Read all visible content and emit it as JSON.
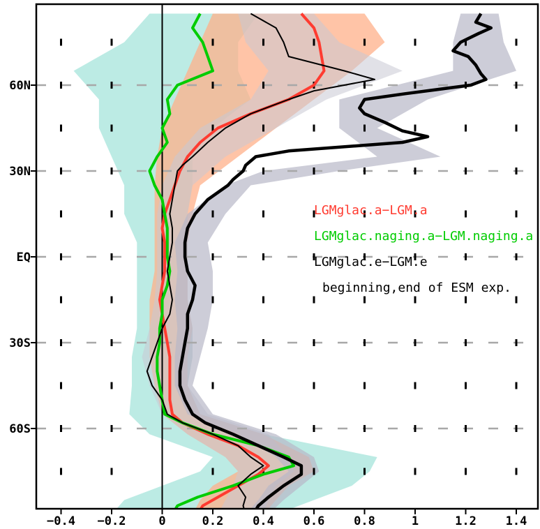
{
  "chart_data": {
    "type": "line",
    "orientation": "vertical-profile",
    "xlim": [
      -0.5,
      1.5
    ],
    "ylim": [
      -90,
      85
    ],
    "x_ticks": [
      {
        "value": -0.4,
        "label": "−0.4"
      },
      {
        "value": -0.2,
        "label": "−0.2"
      },
      {
        "value": 0,
        "label": "0"
      },
      {
        "value": 0.2,
        "label": "0.2"
      },
      {
        "value": 0.4,
        "label": "0.4"
      },
      {
        "value": 0.6,
        "label": "0.6"
      },
      {
        "value": 0.8,
        "label": "0.8"
      },
      {
        "value": 1,
        "label": "1"
      },
      {
        "value": 1.2,
        "label": "1.2"
      },
      {
        "value": 1.4,
        "label": "1.4"
      }
    ],
    "y_ticks": [
      {
        "value": 60,
        "label": "60N"
      },
      {
        "value": 30,
        "label": "30N"
      },
      {
        "value": 0,
        "label": "EQ"
      },
      {
        "value": -30,
        "label": "30S"
      },
      {
        "value": -60,
        "label": "60S"
      }
    ],
    "grid": "dashed horizontal at labeled latitudes; short vertical dashes at x ticks",
    "legend_position": "right-middle",
    "legend": [
      {
        "text": "LGMglac.a−LGM.a",
        "color": "#ff3b30"
      },
      {
        "text": "LGMglac.naging.a−LGM.naging.a",
        "color": "#00cc00"
      },
      {
        "text": "LGMglac.e−LGM.e",
        "color": "#000000"
      },
      {
        "text": "beginning,end of ESM exp.",
        "color": "#000000"
      }
    ],
    "bands": [
      {
        "color": "#9fe3d9",
        "opacity": 0.7,
        "lat": [
          85,
          75,
          65,
          55,
          45,
          35,
          25,
          15,
          5,
          -5,
          -15,
          -25,
          -35,
          -45,
          -55,
          -62,
          -70,
          -75,
          -80,
          -85,
          -90
        ],
        "lower": [
          -0.05,
          -0.15,
          -0.35,
          -0.25,
          -0.25,
          -0.2,
          -0.15,
          -0.15,
          -0.1,
          -0.1,
          -0.1,
          -0.1,
          -0.12,
          -0.12,
          -0.13,
          -0.05,
          0.2,
          0.15,
          0.0,
          -0.15,
          -0.2
        ],
        "upper": [
          0.38,
          0.3,
          0.3,
          0.35,
          0.2,
          0.12,
          0.12,
          0.1,
          0.1,
          0.1,
          0.1,
          0.12,
          0.12,
          0.1,
          0.15,
          0.4,
          0.85,
          0.82,
          0.75,
          0.6,
          0.45
        ]
      },
      {
        "color": "#ffb08a",
        "opacity": 0.75,
        "lat": [
          85,
          75,
          65,
          55,
          45,
          35,
          25,
          15,
          5,
          -5,
          -15,
          -25,
          -35,
          -45,
          -55,
          -62,
          -70,
          -75,
          -80,
          -85,
          -90
        ],
        "lower": [
          0.2,
          0.15,
          0.1,
          0.05,
          0.0,
          -0.02,
          -0.03,
          -0.03,
          -0.03,
          -0.03,
          -0.05,
          -0.05,
          -0.05,
          -0.03,
          0.0,
          0.1,
          0.25,
          0.3,
          0.2,
          0.15,
          0.12
        ],
        "upper": [
          0.8,
          0.88,
          0.75,
          0.6,
          0.45,
          0.3,
          0.15,
          0.12,
          0.1,
          0.1,
          0.1,
          0.12,
          0.1,
          0.1,
          0.15,
          0.4,
          0.58,
          0.6,
          0.5,
          0.45,
          0.4
        ]
      },
      {
        "color": "#c8c8d4",
        "opacity": 0.55,
        "lat": [
          85,
          75,
          65,
          55,
          45,
          35,
          25,
          15,
          5,
          -5,
          -15,
          -25,
          -35,
          -45,
          -55,
          -62,
          -70,
          -75,
          -80,
          -85,
          -90
        ],
        "lower": [
          0.3,
          0.33,
          0.42,
          0.35,
          0.15,
          0.05,
          0.0,
          -0.02,
          -0.02,
          -0.02,
          -0.03,
          -0.05,
          -0.08,
          -0.05,
          0.0,
          0.1,
          0.25,
          0.3,
          0.28,
          0.25,
          0.22
        ],
        "upper": [
          0.6,
          0.7,
          0.95,
          0.65,
          0.45,
          0.25,
          0.12,
          0.1,
          0.1,
          0.1,
          0.1,
          0.12,
          0.12,
          0.1,
          0.18,
          0.42,
          0.5,
          0.52,
          0.45,
          0.42,
          0.4
        ]
      },
      {
        "color": "#b8b8c8",
        "opacity": 0.7,
        "lat": [
          85,
          75,
          65,
          55,
          45,
          35,
          30,
          25,
          15,
          5,
          -5,
          -15,
          -25,
          -35,
          -45,
          -55,
          -62,
          -70,
          -75,
          -80,
          -85,
          -90
        ],
        "lower": [
          1.18,
          1.15,
          1.15,
          0.7,
          0.7,
          0.85,
          0.4,
          0.25,
          0.1,
          0.05,
          0.06,
          0.05,
          0.06,
          0.05,
          0.05,
          0.1,
          0.3,
          0.45,
          0.5,
          0.42,
          0.38,
          0.33
        ],
        "upper": [
          1.33,
          1.35,
          1.4,
          1.05,
          0.85,
          1.1,
          0.7,
          0.35,
          0.25,
          0.18,
          0.2,
          0.2,
          0.18,
          0.15,
          0.12,
          0.2,
          0.45,
          0.6,
          0.62,
          0.55,
          0.48,
          0.42
        ]
      }
    ],
    "series": [
      {
        "color": "#ff3b30",
        "width": 4,
        "lat": [
          85,
          80,
          75,
          70,
          65,
          60,
          55,
          50,
          45,
          40,
          35,
          30,
          25,
          20,
          15,
          10,
          5,
          0,
          -5,
          -10,
          -15,
          -20,
          -25,
          -30,
          -35,
          -40,
          -45,
          -50,
          -55,
          -58,
          -62,
          -66,
          -70,
          -73,
          -76,
          -80,
          -84,
          -87,
          -90
        ],
        "x": [
          0.55,
          0.6,
          0.62,
          0.63,
          0.64,
          0.6,
          0.5,
          0.35,
          0.22,
          0.15,
          0.1,
          0.07,
          0.05,
          0.03,
          0.01,
          0.0,
          0.01,
          0.01,
          0.01,
          0.0,
          -0.01,
          0.0,
          0.01,
          0.02,
          0.03,
          0.03,
          0.03,
          0.03,
          0.04,
          0.08,
          0.18,
          0.3,
          0.38,
          0.42,
          0.38,
          0.3,
          0.22,
          0.16,
          0.14
        ]
      },
      {
        "color": "#00cc00",
        "width": 4,
        "lat": [
          85,
          80,
          75,
          70,
          65,
          60,
          55,
          50,
          45,
          40,
          35,
          30,
          25,
          20,
          15,
          10,
          5,
          0,
          -5,
          -10,
          -15,
          -20,
          -25,
          -30,
          -35,
          -40,
          -45,
          -50,
          -55,
          -58,
          -62,
          -66,
          -70,
          -73,
          -76,
          -80,
          -84,
          -87,
          -90
        ],
        "x": [
          0.15,
          0.12,
          0.16,
          0.18,
          0.2,
          0.06,
          0.02,
          0.03,
          0.0,
          0.02,
          -0.02,
          -0.05,
          -0.03,
          0.0,
          0.01,
          0.02,
          0.02,
          0.02,
          0.03,
          0.02,
          0.0,
          0.0,
          -0.01,
          -0.01,
          -0.02,
          -0.02,
          -0.01,
          0.0,
          0.01,
          0.08,
          0.2,
          0.38,
          0.5,
          0.52,
          0.4,
          0.28,
          0.14,
          0.06,
          0.04
        ]
      },
      {
        "color": "#000000",
        "width": 2,
        "lat": [
          85,
          80,
          75,
          70,
          65,
          62,
          58,
          55,
          50,
          45,
          40,
          35,
          32,
          30,
          25,
          20,
          15,
          10,
          5,
          0,
          -5,
          -10,
          -15,
          -20,
          -25,
          -30,
          -35,
          -40,
          -45,
          -50,
          -55,
          -58,
          -62,
          -66,
          -70,
          -73,
          -76,
          -80,
          -84,
          -87,
          -90
        ],
        "x": [
          0.35,
          0.45,
          0.48,
          0.5,
          0.72,
          0.84,
          0.6,
          0.5,
          0.35,
          0.25,
          0.18,
          0.12,
          0.08,
          0.06,
          0.05,
          0.04,
          0.03,
          0.04,
          0.04,
          0.03,
          0.02,
          0.03,
          0.04,
          0.03,
          0.0,
          -0.02,
          -0.04,
          -0.06,
          -0.04,
          0.0,
          0.02,
          0.08,
          0.2,
          0.3,
          0.35,
          0.4,
          0.35,
          0.3,
          0.33,
          0.32,
          0.33
        ]
      },
      {
        "color": "#000000",
        "width": 4.5,
        "lat": [
          85,
          82,
          80,
          78,
          75,
          72,
          70,
          67,
          64,
          62,
          60,
          57,
          55,
          52,
          50,
          47,
          44,
          42,
          40,
          37,
          35,
          32,
          30,
          27,
          25,
          20,
          15,
          10,
          5,
          0,
          -5,
          -10,
          -15,
          -20,
          -25,
          -30,
          -35,
          -40,
          -45,
          -50,
          -55,
          -58,
          -62,
          -66,
          -70,
          -73,
          -76,
          -80,
          -84,
          -87,
          -90
        ],
        "x": [
          1.26,
          1.24,
          1.3,
          1.25,
          1.18,
          1.15,
          1.21,
          1.24,
          1.26,
          1.28,
          1.22,
          0.96,
          0.8,
          0.78,
          0.8,
          0.88,
          0.95,
          1.05,
          0.95,
          0.5,
          0.37,
          0.33,
          0.32,
          0.28,
          0.26,
          0.18,
          0.13,
          0.1,
          0.09,
          0.09,
          0.1,
          0.13,
          0.12,
          0.1,
          0.1,
          0.09,
          0.08,
          0.07,
          0.07,
          0.09,
          0.12,
          0.17,
          0.28,
          0.38,
          0.48,
          0.55,
          0.55,
          0.48,
          0.42,
          0.38,
          0.36
        ]
      }
    ]
  }
}
